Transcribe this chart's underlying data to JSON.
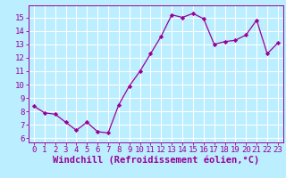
{
  "x": [
    0,
    1,
    2,
    3,
    4,
    5,
    6,
    7,
    8,
    9,
    10,
    11,
    12,
    13,
    14,
    15,
    16,
    17,
    18,
    19,
    20,
    21,
    22,
    23
  ],
  "y": [
    8.4,
    7.9,
    7.8,
    7.2,
    6.6,
    7.2,
    6.5,
    6.4,
    8.5,
    9.9,
    11.0,
    12.3,
    13.6,
    15.2,
    15.0,
    15.3,
    14.9,
    13.0,
    13.2,
    13.3,
    13.7,
    14.8,
    12.3,
    13.1
  ],
  "x_ticks": [
    0,
    1,
    2,
    3,
    4,
    5,
    6,
    7,
    8,
    9,
    10,
    11,
    12,
    13,
    14,
    15,
    16,
    17,
    18,
    19,
    20,
    21,
    22,
    23
  ],
  "y_ticks": [
    6,
    7,
    8,
    9,
    10,
    11,
    12,
    13,
    14,
    15
  ],
  "ylim": [
    5.7,
    15.9
  ],
  "xlim": [
    -0.5,
    23.5
  ],
  "xlabel": "Windchill (Refroidissement éolien,°C)",
  "line_color": "#990099",
  "marker": "D",
  "marker_size": 2.2,
  "bg_color": "#bbeeff",
  "grid_color": "#ffffff",
  "tick_label_color": "#990099",
  "xlabel_color": "#990099",
  "xlabel_fontsize": 7.5,
  "tick_fontsize": 6.5,
  "figsize": [
    3.2,
    2.0
  ],
  "dpi": 100
}
